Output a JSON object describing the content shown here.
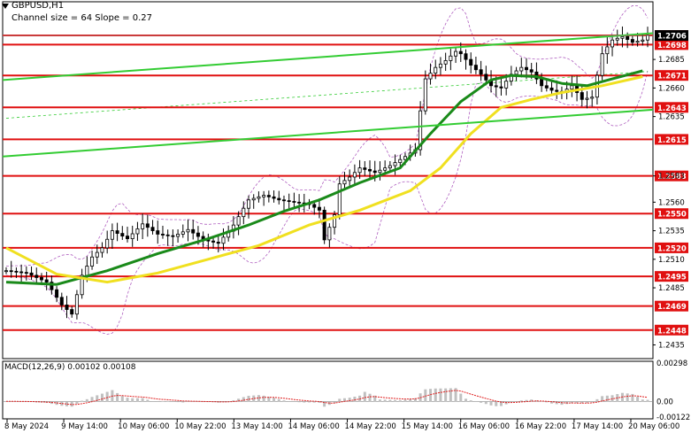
{
  "header": {
    "symbol": "GBPUSD,H1",
    "channel": "Channel size = 64 Slope = 0.27"
  },
  "macd": {
    "label": "MACD(12,26,9) 0.00102 0.00108",
    "scale_labels": [
      "0.00298",
      "0.00",
      "-0.00122"
    ]
  },
  "chart_data": {
    "type": "candlestick",
    "title": "GBPUSD,H1",
    "ylim": [
      1.2423,
      1.272
    ],
    "y_ticks": [
      "1.2685",
      "1.2660",
      "1.2635",
      "1.2583",
      "1.2560",
      "1.2535",
      "1.2510",
      "1.2485",
      "1.2435"
    ],
    "levels": [
      "1.2706",
      "1.2698",
      "1.2671",
      "1.2643",
      "1.2615",
      "1.2583",
      "1.2550",
      "1.2520",
      "1.2495",
      "1.2469",
      "1.2448"
    ],
    "current_price": "1.2706",
    "x_labels": [
      "8 May 2024",
      "9 May 14:00",
      "10 May 06:00",
      "10 May 22:00",
      "13 May 14:00",
      "14 May 06:00",
      "14 May 22:00",
      "15 May 14:00",
      "16 May 06:00",
      "16 May 22:00",
      "17 May 14:00",
      "20 May 06:00"
    ],
    "close_path": [
      [
        0,
        1.25
      ],
      [
        4,
        1.2498
      ],
      [
        8,
        1.249
      ],
      [
        11,
        1.247
      ],
      [
        13,
        1.2462
      ],
      [
        15,
        1.2496
      ],
      [
        17,
        1.2512
      ],
      [
        19,
        1.252
      ],
      [
        21,
        1.2535
      ],
      [
        24,
        1.2528
      ],
      [
        27,
        1.2541
      ],
      [
        30,
        1.2532
      ],
      [
        33,
        1.253
      ],
      [
        36,
        1.2536
      ],
      [
        39,
        1.2527
      ],
      [
        42,
        1.2524
      ],
      [
        45,
        1.254
      ],
      [
        48,
        1.2562
      ],
      [
        51,
        1.2566
      ],
      [
        54,
        1.2562
      ],
      [
        57,
        1.256
      ],
      [
        60,
        1.2558
      ],
      [
        62,
        1.2553
      ],
      [
        63,
        1.2527
      ],
      [
        65,
        1.2549
      ],
      [
        66,
        1.2576
      ],
      [
        68,
        1.2582
      ],
      [
        70,
        1.259
      ],
      [
        73,
        1.2586
      ],
      [
        76,
        1.2592
      ],
      [
        79,
        1.26
      ],
      [
        81,
        1.2606
      ],
      [
        82,
        1.264
      ],
      [
        83,
        1.2668
      ],
      [
        85,
        1.2678
      ],
      [
        87,
        1.2684
      ],
      [
        89,
        1.2692
      ],
      [
        90,
        1.269
      ],
      [
        92,
        1.268
      ],
      [
        94,
        1.2672
      ],
      [
        96,
        1.2662
      ],
      [
        98,
        1.266
      ],
      [
        100,
        1.2672
      ],
      [
        102,
        1.2678
      ],
      [
        104,
        1.2674
      ],
      [
        106,
        1.2662
      ],
      [
        108,
        1.2658
      ],
      [
        110,
        1.2656
      ],
      [
        112,
        1.2662
      ],
      [
        114,
        1.265
      ],
      [
        116,
        1.2652
      ],
      [
        118,
        1.269
      ],
      [
        120,
        1.2702
      ],
      [
        122,
        1.2705
      ],
      [
        124,
        1.27
      ],
      [
        126,
        1.2702
      ],
      [
        127,
        1.2706
      ]
    ],
    "series": [
      {
        "name": "MA fast",
        "color": "#1a8a1a",
        "values": [
          [
            0,
            1.249
          ],
          [
            10,
            1.2488
          ],
          [
            20,
            1.25
          ],
          [
            30,
            1.2515
          ],
          [
            40,
            1.2528
          ],
          [
            48,
            1.254
          ],
          [
            55,
            1.2552
          ],
          [
            62,
            1.2562
          ],
          [
            70,
            1.2577
          ],
          [
            78,
            1.259
          ],
          [
            84,
            1.262
          ],
          [
            90,
            1.2648
          ],
          [
            96,
            1.2667
          ],
          [
            100,
            1.2671
          ],
          [
            105,
            1.267
          ],
          [
            110,
            1.2664
          ],
          [
            115,
            1.2662
          ],
          [
            120,
            1.2668
          ],
          [
            126,
            1.2675
          ]
        ]
      },
      {
        "name": "MA slow",
        "color": "#f0e020",
        "values": [
          [
            0,
            1.252
          ],
          [
            10,
            1.2497
          ],
          [
            20,
            1.249
          ],
          [
            30,
            1.2498
          ],
          [
            40,
            1.251
          ],
          [
            50,
            1.2522
          ],
          [
            60,
            1.254
          ],
          [
            70,
            1.2553
          ],
          [
            80,
            1.257
          ],
          [
            86,
            1.259
          ],
          [
            92,
            1.262
          ],
          [
            98,
            1.2643
          ],
          [
            104,
            1.265
          ],
          [
            110,
            1.2656
          ],
          [
            118,
            1.2662
          ],
          [
            126,
            1.267
          ]
        ]
      }
    ],
    "channel_lines": [
      {
        "from": [
          0,
          1.2667
        ],
        "to": [
          127,
          1.2708
        ],
        "color": "#33cc33"
      },
      {
        "from": [
          0,
          1.26
        ],
        "to": [
          127,
          1.2641
        ],
        "color": "#33cc33"
      }
    ],
    "macd_hist_range": [
      -0.00122,
      0.00298
    ]
  },
  "colors": {
    "level": "#e01010",
    "candle": "#000000",
    "macd_bar": "#c0c0c0",
    "macd_signal": "#e02020",
    "current_price_box": "#000000"
  }
}
